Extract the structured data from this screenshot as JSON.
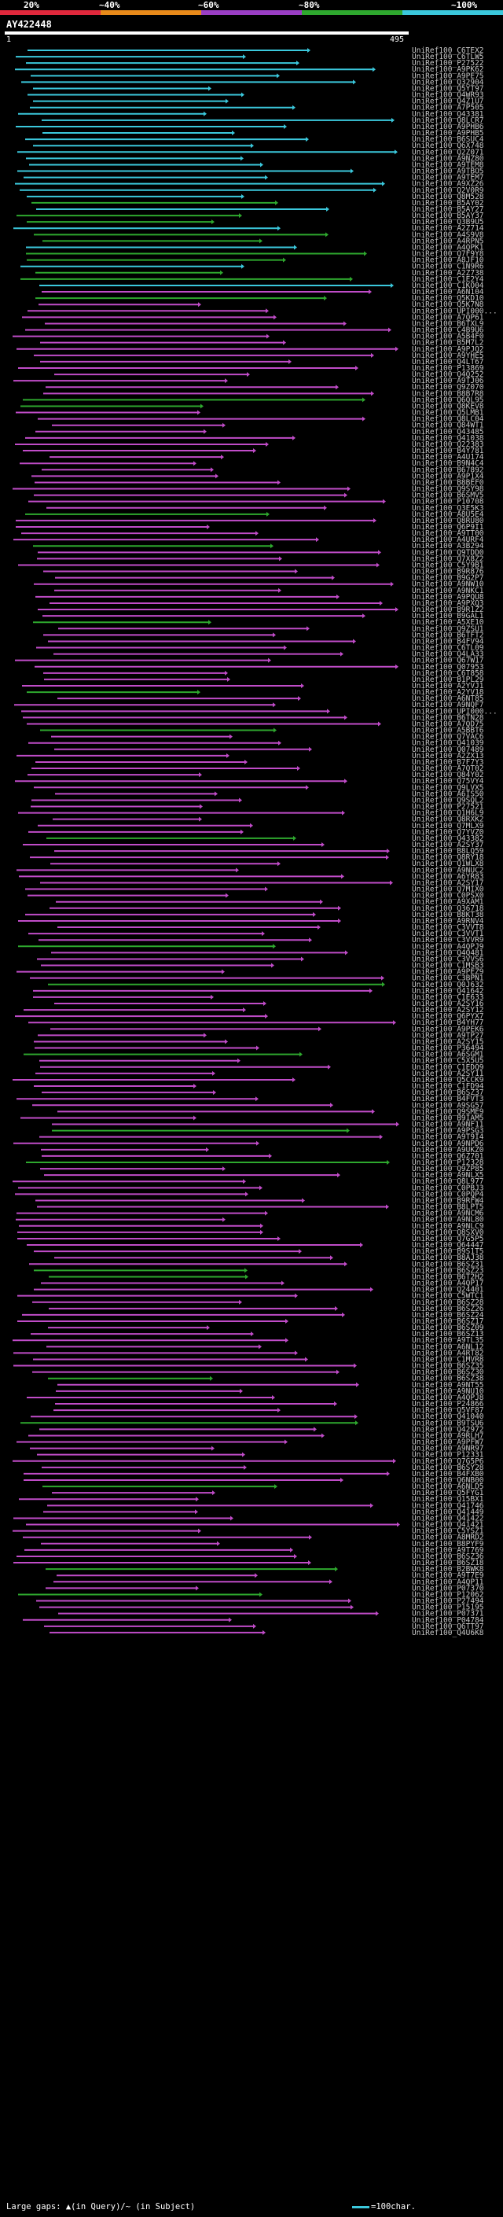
{
  "legend": {
    "labels": [
      "20%",
      "~40%",
      "~60%",
      "~80%",
      "~100%"
    ],
    "colors": [
      "#e0283c",
      "#e88a1a",
      "#9a3ec4",
      "#2ea82e",
      "#3bc8dc"
    ]
  },
  "query": {
    "name": "AY422448",
    "start": "1",
    "end": "495"
  },
  "footer": {
    "left": "Large gaps: ▲(in Query)/~ (in Subject)",
    "right": "=100char."
  },
  "colors": {
    "cyan": "#3bc8dc",
    "green": "#2ea82e",
    "magenta": "#c04cc8",
    "line_gray": "#9a9a9a",
    "background": "#000000"
  },
  "hits": {
    "names": [
      "UniRef100_C6TEX2",
      "UniRef100_C6TLW5",
      "UniRef100_P27522",
      "UniRef100_A9PK62",
      "UniRef100_A9PE75",
      "UniRef100_Q32904",
      "UniRef100_Q5YT97",
      "UniRef100_Q4WR93",
      "UniRef100_Q4Z1U7",
      "UniRef100_A7P505",
      "UniRef100_Q43381",
      "UniRef100_Q8LCR7",
      "UniRef100_A9PHB6",
      "UniRef100_A9PHB5",
      "UniRef100_B6SUC4",
      "UniRef100_Q6X748",
      "UniRef100_Q2Z071",
      "UniRef100_A9NZ80",
      "UniRef100_A9TEM8",
      "UniRef100_A9TBO5",
      "UniRef100_A9TEM7",
      "UniRef100_A9XZ26",
      "UniRef100_Q2V0R9",
      "UniRef100_Q8M528",
      "UniRef100_B5AY02",
      "UniRef100_B5AY27",
      "UniRef100_B5AY37",
      "UniRef100_Q3B9U5",
      "UniRef100_A2Z714",
      "UniRef100_A4S9V8",
      "UniRef100_A4RPN5",
      "UniRef100_A4QPK1",
      "UniRef100_Q7F9Y8",
      "UniRef100_A8JF10",
      "UniRef100_C1N9R6",
      "UniRef100_A2Z738",
      "UniRef100_C1E2Y4",
      "UniRef100_C1KO04",
      "UniRef100_A6N104",
      "UniRef100_Q5KD10",
      "UniRef100_Q5K7N8",
      "UniRef100_UPI000...",
      "UniRef100_A7QP61",
      "UniRef100_B6TXL9",
      "UniRef100_C4B9U6",
      "UniRef100_A5B4F0",
      "UniRef100_B5M7L2",
      "UniRef100_A9PJQ2",
      "UniRef100_A9YHE5",
      "UniRef100_Q4LT67",
      "UniRef100_P13869",
      "UniRef100_Q4Q252",
      "UniRef100_A9TJ06",
      "UniRef100_Q9Z070",
      "UniRef100_B8B7R8",
      "UniRef100_Q6QL95",
      "UniRef100_Q8KEV8",
      "UniRef100_Q5LMB1",
      "UniRef100_Q8LC04",
      "UniRef100_Q84WT1",
      "UniRef100_Q43485",
      "UniRef100_Q41038",
      "UniRef100_Q22383",
      "UniRef100_B4Y781",
      "UniRef100_A4U174",
      "UniRef100_B9N4C4",
      "UniRef100_B67892",
      "UniRef100_A9P1X4",
      "UniRef100_B8BEF0",
      "UniRef100_Q9SY98",
      "UniRef100_B6SMV5",
      "UniRef100_P10708",
      "UniRef100_Q3E5K3",
      "UniRef100_A8U5E4",
      "UniRef100_Q8RU80",
      "UniRef100_Q6P9I1",
      "UniRef100_A9TT00",
      "UniRef100_A4URF4",
      "UniRef100_A3B294",
      "UniRef100_Q9TDD0",
      "UniRef100_Q7X8Z2",
      "UniRef100_C5Y9B1",
      "UniRef100_B9R876",
      "UniRef100_B9G2P7",
      "UniRef100_A9NW10",
      "UniRef100_A9NKC1",
      "UniRef100_A9PQU8",
      "UniRef100_A9PXQ3",
      "UniRef100_B9R1Z2",
      "UniRef100_B9GAL1",
      "UniRef100_A5XE10",
      "UniRef100_Q9ZSU1",
      "UniRef100_B6TFT2",
      "UniRef100_B4FV94",
      "UniRef100_C6TL09",
      "UniRef100_Q4LA33",
      "UniRef100_Q67W17",
      "UniRef100_Q07953",
      "UniRef100_C6T858",
      "UniRef100_B1PL29",
      "UniRef100_A2YVJ1",
      "UniRef100_A2YV18",
      "UniRef100_A6NT85",
      "UniRef100_A9NQF7",
      "UniRef100_UPI000...",
      "UniRef100_B6TN28",
      "UniRef100_A7QD75",
      "UniRef100_A5BBT6",
      "UniRef100_Q7VAC6",
      "UniRef100_Q41039",
      "UniRef100_Q07489",
      "UniRef100_A2ZX13",
      "UniRef100_B7F7Y3",
      "UniRef100_A7QT02",
      "UniRef100_Q84Y02",
      "UniRef100_Q75VY4",
      "UniRef100_Q9LVX5",
      "UniRef100_A6IS50",
      "UniRef100_Q9SQL2",
      "UniRef100_P27521",
      "UniRef100_Q1H6L9",
      "UniRef100_Q8RXK2",
      "UniRef100_Q7MLX9",
      "UniRef100_Q7YVZ0",
      "UniRef100_Q43382",
      "UniRef100_A2SY37",
      "UniRef100_B8LQ59",
      "UniRef100_Q8RY18",
      "UniRef100_Q1WLX8",
      "UniRef100_A9NUC2",
      "UniRef100_A6YR83",
      "UniRef100_A2SY17",
      "UniRef100_Q7MIX0",
      "UniRef100_C0PSX0",
      "UniRef100_A9XAM1",
      "UniRef100_Q36718",
      "UniRef100_B8KT38",
      "UniRef100_A9RNV4",
      "UniRef100_C3VVT8",
      "UniRef100_C3VVT1",
      "UniRef100_C3VVR9",
      "UniRef100_A4QPJ9",
      "UniRef100_Q4Q481",
      "UniRef100_C3VVS6",
      "UniRef100_C1MSB3",
      "UniRef100_A9PEZ9",
      "UniRef100_C3BPN1",
      "UniRef100_Q0J632",
      "UniRef100_Q41642",
      "UniRef100_C1E633",
      "UniRef100_A2SY16",
      "UniRef100_A2SY12",
      "UniRef100_Q6PYX7",
      "UniRef100_B4YH77",
      "UniRef100_A9PEK6",
      "UniRef100_A9TP27",
      "UniRef100_A2SY15",
      "UniRef100_P36494",
      "UniRef100_A6SGM1",
      "UniRef100_C5X5U5",
      "UniRef100_C1EDQ9",
      "UniRef100_A2SY11",
      "UniRef100_Q5CCK9",
      "UniRef100_C1FD94",
      "UniRef100_B6SZ37",
      "UniRef100_B4FVT3",
      "UniRef100_A9SG57",
      "UniRef100_Q9SME9",
      "UniRef100_B9IAM5",
      "UniRef100_A9NF11",
      "UniRef100_A9PSG3",
      "UniRef100_A9T9I4",
      "UniRef100_A9NPD6",
      "UniRef100_A9UKZ0",
      "UniRef100_Q6Z701",
      "UniRef100_P12328",
      "UniRef100_Q9ZP85",
      "UniRef100_A9NLX5",
      "UniRef100_Q8L977",
      "UniRef100_C0PBJ3",
      "UniRef100_C0PQP4",
      "UniRef100_B9RFW4",
      "UniRef100_B8LPT5",
      "UniRef100_A9NCM6",
      "UniRef100_A9NL80",
      "UniRef100_A9NLC9",
      "UniRef100_Q8SXV0",
      "UniRef100_Q7G5P5",
      "UniRef100_Q64447",
      "UniRef100_B9S1T5",
      "UniRef100_B8AJ38",
      "UniRef100_B6SZ31",
      "UniRef100_B6SZ23",
      "UniRef100_B6T2H2",
      "UniRef100_A4QP17",
      "UniRef100_Q24401",
      "UniRef100_C5WTC1",
      "UniRef100_B6SZ28",
      "UniRef100_B6SZ26",
      "UniRef100_B6SZ24",
      "UniRef100_B6SZ17",
      "UniRef100_B6SZ09",
      "UniRef100_B6SZ13",
      "UniRef100_A9TL35",
      "UniRef100_A6NL12",
      "UniRef100_A4RT82",
      "UniRef100_C1MVR8",
      "UniRef100_B6SZ35",
      "UniRef100_B6SZ30",
      "UniRef100_B6SZ38",
      "UniRef100_A9NT55",
      "UniRef100_A9NU10",
      "UniRef100_A4QPJ8",
      "UniRef100_P24866",
      "UniRef100_Q5VF87",
      "UniRef100_Q41040",
      "UniRef100_B9TSU6",
      "UniRef100_Q42972",
      "UniRef100_A9RLH7",
      "UniRef100_A9PFW7",
      "UniRef100_A9NR97",
      "UniRef100_P12331",
      "UniRef100_Q7G5P6",
      "UniRef100_B6SY28",
      "UniRef100_B4FXB0",
      "UniRef100_Q6NB00",
      "UniRef100_A6NLD5",
      "UniRef100_Q5FYG1",
      "UniRef100_Q15BX1",
      "UniRef100_Q41746",
      "UniRef100_Q41449",
      "UniRef100_Q41422",
      "UniRef100_Q41421",
      "UniRef100_C5YSZ1",
      "UniRef100_A8MRD2",
      "UniRef100_B8PYF9",
      "UniRef100_A9T769",
      "UniRef100_B6SZ36",
      "UniRef100_B6SZ18",
      "UniRef100_B2BWK8",
      "UniRef100_A9T7E9",
      "UniRef100_A4QP11",
      "UniRef100_P07370",
      "UniRef100_P12062",
      "UniRef100_P27494",
      "UniRef100_P15195",
      "UniRef100_P07371",
      "UniRef100_P04784",
      "UniRef100_Q6TT97",
      "UniRef100_Q4U6K8"
    ]
  }
}
